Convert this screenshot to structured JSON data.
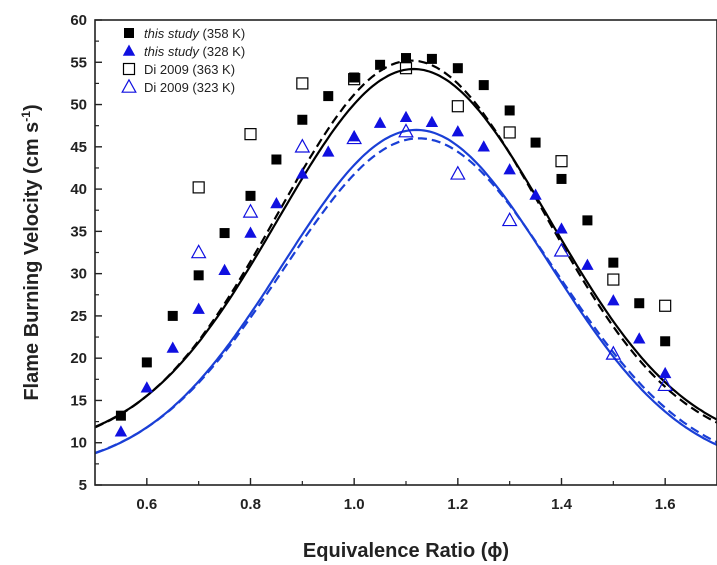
{
  "chart_data": {
    "type": "scatter",
    "title": "",
    "xlabel": "Equivalence Ratio (ϕ)",
    "ylabel_main": "Flame Burning Velocity (cm s",
    "ylabel_sup": "-1",
    "ylabel_close": ")",
    "xlim": [
      0.5,
      1.7
    ],
    "ylim": [
      5,
      60
    ],
    "xticks": [
      0.6,
      0.8,
      1.0,
      1.2,
      1.4,
      1.6
    ],
    "xtick_labels": [
      "0.6",
      "0.8",
      "1.0",
      "1.2",
      "1.4",
      "1.6"
    ],
    "yticks": [
      5,
      10,
      15,
      20,
      25,
      30,
      35,
      40,
      45,
      50,
      55,
      60
    ],
    "ytick_labels": [
      "5",
      "10",
      "15",
      "20",
      "25",
      "30",
      "35",
      "40",
      "45",
      "50",
      "55",
      "60"
    ],
    "grid": false,
    "legend_position": "top-left",
    "series": [
      {
        "name_italic": "this study",
        "name_rest": " (358 K)",
        "marker": "square",
        "filled": true,
        "color": "#000000",
        "points": [
          [
            0.55,
            13.2
          ],
          [
            0.6,
            19.5
          ],
          [
            0.65,
            25.0
          ],
          [
            0.7,
            29.8
          ],
          [
            0.75,
            34.8
          ],
          [
            0.8,
            39.2
          ],
          [
            0.85,
            43.5
          ],
          [
            0.9,
            48.2
          ],
          [
            0.95,
            51.0
          ],
          [
            1.0,
            53.2
          ],
          [
            1.05,
            54.7
          ],
          [
            1.1,
            55.5
          ],
          [
            1.15,
            55.4
          ],
          [
            1.2,
            54.3
          ],
          [
            1.25,
            52.3
          ],
          [
            1.3,
            49.3
          ],
          [
            1.35,
            45.5
          ],
          [
            1.4,
            41.2
          ],
          [
            1.45,
            36.3
          ],
          [
            1.5,
            31.3
          ],
          [
            1.55,
            26.5
          ],
          [
            1.6,
            22.0
          ]
        ]
      },
      {
        "name_italic": "this study",
        "name_rest": " (328 K)",
        "marker": "triangle",
        "filled": true,
        "color": "#1010e0",
        "points": [
          [
            0.55,
            11.3
          ],
          [
            0.6,
            16.5
          ],
          [
            0.65,
            21.2
          ],
          [
            0.7,
            25.8
          ],
          [
            0.75,
            30.4
          ],
          [
            0.8,
            34.8
          ],
          [
            0.85,
            38.3
          ],
          [
            0.9,
            41.8
          ],
          [
            0.95,
            44.4
          ],
          [
            1.0,
            46.2
          ],
          [
            1.05,
            47.8
          ],
          [
            1.1,
            48.5
          ],
          [
            1.15,
            47.9
          ],
          [
            1.2,
            46.8
          ],
          [
            1.25,
            45.0
          ],
          [
            1.3,
            42.3
          ],
          [
            1.35,
            39.3
          ],
          [
            1.4,
            35.3
          ],
          [
            1.45,
            31.0
          ],
          [
            1.5,
            26.8
          ],
          [
            1.55,
            22.3
          ],
          [
            1.6,
            18.2
          ]
        ]
      },
      {
        "name_italic": "",
        "name_rest": "Di 2009 (363 K)",
        "marker": "square",
        "filled": false,
        "color": "#000000",
        "points": [
          [
            0.7,
            40.2
          ],
          [
            0.8,
            46.5
          ],
          [
            0.9,
            52.5
          ],
          [
            1.0,
            53.0
          ],
          [
            1.1,
            54.3
          ],
          [
            1.2,
            49.8
          ],
          [
            1.3,
            46.7
          ],
          [
            1.4,
            43.3
          ],
          [
            1.5,
            29.3
          ],
          [
            1.6,
            26.2
          ]
        ]
      },
      {
        "name_italic": "",
        "name_rest": "Di 2009 (323 K)",
        "marker": "triangle",
        "filled": false,
        "color": "#1010e0",
        "points": [
          [
            0.7,
            32.5
          ],
          [
            0.8,
            37.3
          ],
          [
            0.9,
            45.0
          ],
          [
            1.0,
            46.0
          ],
          [
            1.1,
            46.8
          ],
          [
            1.2,
            41.8
          ],
          [
            1.3,
            36.3
          ],
          [
            1.4,
            32.7
          ],
          [
            1.5,
            20.5
          ],
          [
            1.6,
            16.8
          ]
        ]
      }
    ],
    "curves": [
      {
        "color": "#000000",
        "dash": false,
        "peak_x": 1.115,
        "peak_y": 54.2,
        "base": 9.0,
        "sigma": 0.262
      },
      {
        "color": "#000000",
        "dash": true,
        "peak_x": 1.11,
        "peak_y": 55.2,
        "base": 9.0,
        "sigma": 0.258
      },
      {
        "color": "#1a3fd6",
        "dash": false,
        "peak_x": 1.12,
        "peak_y": 47.0,
        "base": 6.5,
        "sigma": 0.258
      },
      {
        "color": "#1a3fd6",
        "dash": true,
        "peak_x": 1.125,
        "peak_y": 46.0,
        "base": 6.5,
        "sigma": 0.262
      }
    ]
  }
}
